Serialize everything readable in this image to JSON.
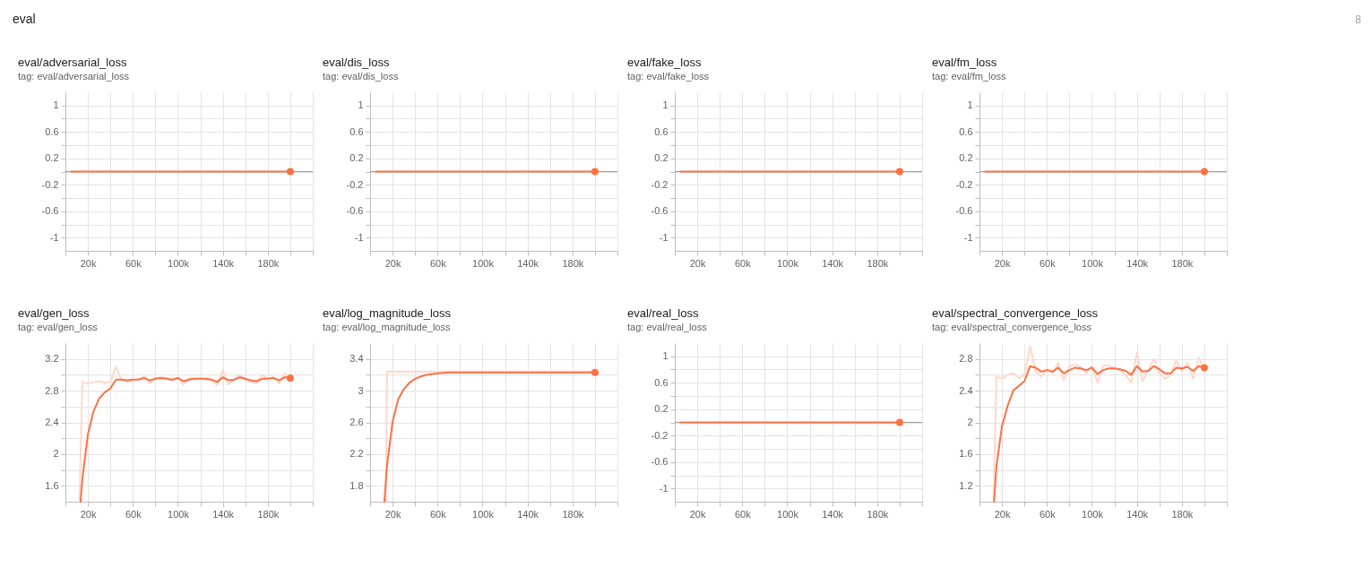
{
  "chart_data": [
    {
      "type": "other",
      "title": "eval",
      "annotations": [
        "8"
      ]
    },
    {
      "type": "line",
      "title": "eval/adversarial_loss",
      "subtitle": "tag: eval/adversarial_loss",
      "xlim": [
        0,
        220000
      ],
      "xticks": [
        {
          "value": 0,
          "label": null
        },
        {
          "value": 20000,
          "label": "20k"
        },
        {
          "value": 40000,
          "label": null
        },
        {
          "value": 60000,
          "label": "60k"
        },
        {
          "value": 80000,
          "label": null
        },
        {
          "value": 100000,
          "label": "100k"
        },
        {
          "value": 120000,
          "label": null
        },
        {
          "value": 140000,
          "label": "140k"
        },
        {
          "value": 160000,
          "label": null
        },
        {
          "value": 180000,
          "label": "180k"
        },
        {
          "value": 200000,
          "label": null
        },
        {
          "value": 220000,
          "label": null
        }
      ],
      "ylim": [
        -1.2,
        1.2
      ],
      "yticks": [
        -1,
        {
          "value": -0.8,
          "label": null
        },
        -0.6,
        {
          "value": -0.4,
          "label": null
        },
        -0.2,
        {
          "value": 0,
          "label": null
        },
        0.2,
        {
          "value": 0.4,
          "label": null
        },
        0.6,
        {
          "value": 0.8,
          "label": null
        },
        1
      ],
      "grid": true,
      "ref_lines": [
        {
          "axis": "y",
          "value": 0,
          "color": "#9e9e9e"
        }
      ],
      "series": [
        {
          "type": "line",
          "color": "#ff7043",
          "x": [
            5000,
            200000
          ],
          "values": [
            0,
            0
          ]
        },
        {
          "type": "scatter",
          "marker": "circle",
          "color": "#ff7043",
          "x": [
            200000
          ],
          "values": [
            0
          ]
        }
      ]
    },
    {
      "type": "line",
      "title": "eval/dis_loss",
      "subtitle": "tag: eval/dis_loss",
      "xlim": [
        0,
        220000
      ],
      "xticks": [
        {
          "value": 0,
          "label": null
        },
        {
          "value": 20000,
          "label": "20k"
        },
        {
          "value": 40000,
          "label": null
        },
        {
          "value": 60000,
          "label": "60k"
        },
        {
          "value": 80000,
          "label": null
        },
        {
          "value": 100000,
          "label": "100k"
        },
        {
          "value": 120000,
          "label": null
        },
        {
          "value": 140000,
          "label": "140k"
        },
        {
          "value": 160000,
          "label": null
        },
        {
          "value": 180000,
          "label": "180k"
        },
        {
          "value": 200000,
          "label": null
        },
        {
          "value": 220000,
          "label": null
        }
      ],
      "ylim": [
        -1.2,
        1.2
      ],
      "yticks": [
        -1,
        {
          "value": -0.8,
          "label": null
        },
        -0.6,
        {
          "value": -0.4,
          "label": null
        },
        -0.2,
        {
          "value": 0,
          "label": null
        },
        0.2,
        {
          "value": 0.4,
          "label": null
        },
        0.6,
        {
          "value": 0.8,
          "label": null
        },
        1
      ],
      "grid": true,
      "ref_lines": [
        {
          "axis": "y",
          "value": 0,
          "color": "#9e9e9e"
        }
      ],
      "series": [
        {
          "type": "line",
          "color": "#ff7043",
          "x": [
            5000,
            200000
          ],
          "values": [
            0,
            0
          ]
        },
        {
          "type": "scatter",
          "marker": "circle",
          "color": "#ff7043",
          "x": [
            200000
          ],
          "values": [
            0
          ]
        }
      ]
    },
    {
      "type": "line",
      "title": "eval/fake_loss",
      "subtitle": "tag: eval/fake_loss",
      "xlim": [
        0,
        220000
      ],
      "xticks": [
        {
          "value": 0,
          "label": null
        },
        {
          "value": 20000,
          "label": "20k"
        },
        {
          "value": 40000,
          "label": null
        },
        {
          "value": 60000,
          "label": "60k"
        },
        {
          "value": 80000,
          "label": null
        },
        {
          "value": 100000,
          "label": "100k"
        },
        {
          "value": 120000,
          "label": null
        },
        {
          "value": 140000,
          "label": "140k"
        },
        {
          "value": 160000,
          "label": null
        },
        {
          "value": 180000,
          "label": "180k"
        },
        {
          "value": 200000,
          "label": null
        },
        {
          "value": 220000,
          "label": null
        }
      ],
      "ylim": [
        -1.2,
        1.2
      ],
      "yticks": [
        -1,
        {
          "value": -0.8,
          "label": null
        },
        -0.6,
        {
          "value": -0.4,
          "label": null
        },
        -0.2,
        {
          "value": 0,
          "label": null
        },
        0.2,
        {
          "value": 0.4,
          "label": null
        },
        0.6,
        {
          "value": 0.8,
          "label": null
        },
        1
      ],
      "grid": true,
      "ref_lines": [
        {
          "axis": "y",
          "value": 0,
          "color": "#9e9e9e"
        }
      ],
      "series": [
        {
          "type": "line",
          "color": "#ff7043",
          "x": [
            5000,
            200000
          ],
          "values": [
            0,
            0
          ]
        },
        {
          "type": "scatter",
          "marker": "circle",
          "color": "#ff7043",
          "x": [
            200000
          ],
          "values": [
            0
          ]
        }
      ]
    },
    {
      "type": "line",
      "title": "eval/fm_loss",
      "subtitle": "tag: eval/fm_loss",
      "xlim": [
        0,
        220000
      ],
      "xticks": [
        {
          "value": 0,
          "label": null
        },
        {
          "value": 20000,
          "label": "20k"
        },
        {
          "value": 40000,
          "label": null
        },
        {
          "value": 60000,
          "label": "60k"
        },
        {
          "value": 80000,
          "label": null
        },
        {
          "value": 100000,
          "label": "100k"
        },
        {
          "value": 120000,
          "label": null
        },
        {
          "value": 140000,
          "label": "140k"
        },
        {
          "value": 160000,
          "label": null
        },
        {
          "value": 180000,
          "label": "180k"
        },
        {
          "value": 200000,
          "label": null
        },
        {
          "value": 220000,
          "label": null
        }
      ],
      "ylim": [
        -1.2,
        1.2
      ],
      "yticks": [
        -1,
        {
          "value": -0.8,
          "label": null
        },
        -0.6,
        {
          "value": -0.4,
          "label": null
        },
        -0.2,
        {
          "value": 0,
          "label": null
        },
        0.2,
        {
          "value": 0.4,
          "label": null
        },
        0.6,
        {
          "value": 0.8,
          "label": null
        },
        1
      ],
      "grid": true,
      "ref_lines": [
        {
          "axis": "y",
          "value": 0,
          "color": "#9e9e9e"
        }
      ],
      "series": [
        {
          "type": "line",
          "color": "#ff7043",
          "x": [
            5000,
            200000
          ],
          "values": [
            0,
            0
          ]
        },
        {
          "type": "scatter",
          "marker": "circle",
          "color": "#ff7043",
          "x": [
            200000
          ],
          "values": [
            0
          ]
        }
      ]
    },
    {
      "type": "line",
      "title": "eval/gen_loss",
      "subtitle": "tag: eval/gen_loss",
      "xlim": [
        0,
        220000
      ],
      "xticks": [
        {
          "value": 0,
          "label": null
        },
        {
          "value": 20000,
          "label": "20k"
        },
        {
          "value": 40000,
          "label": null
        },
        {
          "value": 60000,
          "label": "60k"
        },
        {
          "value": 80000,
          "label": null
        },
        {
          "value": 100000,
          "label": "100k"
        },
        {
          "value": 120000,
          "label": null
        },
        {
          "value": 140000,
          "label": "140k"
        },
        {
          "value": 160000,
          "label": null
        },
        {
          "value": 180000,
          "label": "180k"
        },
        {
          "value": 200000,
          "label": null
        },
        {
          "value": 220000,
          "label": null
        }
      ],
      "ylim": [
        1.4,
        3.4
      ],
      "yticks": [
        1.6,
        {
          "value": 1.8,
          "label": null
        },
        2,
        {
          "value": 2.2,
          "label": null
        },
        2.4,
        {
          "value": 2.6,
          "label": null
        },
        2.8,
        {
          "value": 3,
          "label": null
        },
        3.2
      ],
      "grid": true,
      "series": [
        {
          "type": "line",
          "color": "#ffd8cc",
          "x": [
            12500,
            15000,
            20000,
            25000,
            30000,
            35000,
            40000,
            45000,
            50000,
            55000,
            60000,
            65000,
            70000,
            75000,
            80000,
            85000,
            90000,
            95000,
            100000,
            105000,
            110000,
            115000,
            120000,
            125000,
            130000,
            135000,
            140000,
            145000,
            150000,
            155000,
            160000,
            165000,
            170000,
            175000,
            180000,
            185000,
            190000,
            195000,
            200000
          ],
          "values": [
            1.4,
            2.91,
            2.89,
            2.91,
            2.92,
            2.9,
            2.91,
            3.1,
            2.94,
            2.91,
            2.94,
            2.94,
            2.98,
            2.89,
            2.96,
            2.97,
            2.96,
            2.92,
            2.97,
            2.88,
            2.96,
            2.96,
            2.96,
            2.94,
            2.93,
            2.87,
            3.05,
            2.88,
            2.94,
            3.0,
            2.93,
            2.91,
            2.89,
            3.0,
            2.95,
            2.97,
            2.89,
            3.02,
            2.94
          ]
        },
        {
          "type": "line",
          "color": "#ff7043",
          "x": [
            13500,
            15000,
            20000,
            25000,
            30000,
            35000,
            40000,
            45000,
            50000,
            55000,
            60000,
            65000,
            70000,
            75000,
            80000,
            85000,
            90000,
            95000,
            100000,
            105000,
            110000,
            115000,
            120000,
            125000,
            130000,
            135000,
            140000,
            145000,
            150000,
            155000,
            160000,
            165000,
            170000,
            175000,
            180000,
            185000,
            190000,
            195000,
            200000
          ],
          "values": [
            1.4,
            1.68,
            2.25,
            2.54,
            2.7,
            2.78,
            2.83,
            2.94,
            2.94,
            2.93,
            2.94,
            2.94,
            2.96,
            2.93,
            2.95,
            2.96,
            2.95,
            2.94,
            2.96,
            2.92,
            2.94,
            2.95,
            2.95,
            2.95,
            2.94,
            2.91,
            2.97,
            2.93,
            2.94,
            2.97,
            2.95,
            2.93,
            2.92,
            2.95,
            2.95,
            2.96,
            2.93,
            2.97,
            2.96
          ]
        },
        {
          "type": "scatter",
          "marker": "circle",
          "color": "#ff7043",
          "x": [
            200000
          ],
          "values": [
            2.96
          ]
        }
      ]
    },
    {
      "type": "line",
      "title": "eval/log_magnitude_loss",
      "subtitle": "tag: eval/log_magnitude_loss",
      "xlim": [
        0,
        220000
      ],
      "xticks": [
        {
          "value": 0,
          "label": null
        },
        {
          "value": 20000,
          "label": "20k"
        },
        {
          "value": 40000,
          "label": null
        },
        {
          "value": 60000,
          "label": "60k"
        },
        {
          "value": 80000,
          "label": null
        },
        {
          "value": 100000,
          "label": "100k"
        },
        {
          "value": 120000,
          "label": null
        },
        {
          "value": 140000,
          "label": "140k"
        },
        {
          "value": 160000,
          "label": null
        },
        {
          "value": 180000,
          "label": "180k"
        },
        {
          "value": 200000,
          "label": null
        },
        {
          "value": 220000,
          "label": null
        }
      ],
      "ylim": [
        1.6,
        3.6
      ],
      "yticks": [
        1.8,
        {
          "value": 2,
          "label": null
        },
        2.2,
        {
          "value": 2.4,
          "label": null
        },
        2.6,
        {
          "value": 2.8,
          "label": null
        },
        3,
        {
          "value": 3.2,
          "label": null
        },
        3.4
      ],
      "grid": true,
      "series": [
        {
          "type": "line",
          "color": "#ffd8cc",
          "x": [
            14000,
            15000,
            200000
          ],
          "values": [
            1.6,
            3.24,
            3.24
          ]
        },
        {
          "type": "line",
          "color": "#ff7043",
          "x": [
            12700,
            15000,
            20000,
            25000,
            30000,
            35000,
            40000,
            45000,
            50000,
            55000,
            60000,
            70000,
            200000
          ],
          "values": [
            1.6,
            2.05,
            2.61,
            2.89,
            3.02,
            3.1,
            3.15,
            3.18,
            3.2,
            3.21,
            3.22,
            3.23,
            3.23
          ]
        },
        {
          "type": "scatter",
          "marker": "circle",
          "color": "#ff7043",
          "x": [
            200000
          ],
          "values": [
            3.23
          ]
        }
      ]
    },
    {
      "type": "line",
      "title": "eval/real_loss",
      "subtitle": "tag: eval/real_loss",
      "xlim": [
        0,
        220000
      ],
      "xticks": [
        {
          "value": 0,
          "label": null
        },
        {
          "value": 20000,
          "label": "20k"
        },
        {
          "value": 40000,
          "label": null
        },
        {
          "value": 60000,
          "label": "60k"
        },
        {
          "value": 80000,
          "label": null
        },
        {
          "value": 100000,
          "label": "100k"
        },
        {
          "value": 120000,
          "label": null
        },
        {
          "value": 140000,
          "label": "140k"
        },
        {
          "value": 160000,
          "label": null
        },
        {
          "value": 180000,
          "label": "180k"
        },
        {
          "value": 200000,
          "label": null
        },
        {
          "value": 220000,
          "label": null
        }
      ],
      "ylim": [
        -1.2,
        1.2
      ],
      "yticks": [
        -1,
        {
          "value": -0.8,
          "label": null
        },
        -0.6,
        {
          "value": -0.4,
          "label": null
        },
        -0.2,
        {
          "value": 0,
          "label": null
        },
        0.2,
        {
          "value": 0.4,
          "label": null
        },
        0.6,
        {
          "value": 0.8,
          "label": null
        },
        1
      ],
      "grid": true,
      "ref_lines": [
        {
          "axis": "y",
          "value": 0,
          "color": "#9e9e9e"
        }
      ],
      "series": [
        {
          "type": "line",
          "color": "#ff7043",
          "x": [
            5000,
            200000
          ],
          "values": [
            0,
            0
          ]
        },
        {
          "type": "scatter",
          "marker": "circle",
          "color": "#ff7043",
          "x": [
            200000
          ],
          "values": [
            0
          ]
        }
      ]
    },
    {
      "type": "line",
      "title": "eval/spectral_convergence_loss",
      "subtitle": "tag: eval/spectral_convergence_loss",
      "xlim": [
        0,
        220000
      ],
      "xticks": [
        {
          "value": 0,
          "label": null
        },
        {
          "value": 20000,
          "label": "20k"
        },
        {
          "value": 40000,
          "label": null
        },
        {
          "value": 60000,
          "label": "60k"
        },
        {
          "value": 80000,
          "label": null
        },
        {
          "value": 100000,
          "label": "100k"
        },
        {
          "value": 120000,
          "label": null
        },
        {
          "value": 140000,
          "label": "140k"
        },
        {
          "value": 160000,
          "label": null
        },
        {
          "value": 180000,
          "label": "180k"
        },
        {
          "value": 200000,
          "label": null
        },
        {
          "value": 220000,
          "label": null
        }
      ],
      "ylim": [
        1,
        3
      ],
      "yticks": [
        1.2,
        {
          "value": 1.4,
          "label": null
        },
        1.6,
        {
          "value": 1.8,
          "label": null
        },
        2,
        {
          "value": 2.2,
          "label": null
        },
        2.4,
        {
          "value": 2.6,
          "label": null
        },
        2.8
      ],
      "grid": true,
      "series": [
        {
          "type": "line",
          "color": "#ffd8cc",
          "x": [
            12500,
            15000,
            20000,
            25000,
            30000,
            35000,
            40000,
            45000,
            50000,
            55000,
            60000,
            65000,
            70000,
            75000,
            80000,
            85000,
            90000,
            95000,
            100000,
            105000,
            110000,
            115000,
            120000,
            125000,
            130000,
            135000,
            140000,
            145000,
            150000,
            155000,
            160000,
            165000,
            170000,
            175000,
            180000,
            185000,
            190000,
            195000,
            200000
          ],
          "values": [
            1.0,
            2.58,
            2.55,
            2.6,
            2.62,
            2.56,
            2.6,
            2.96,
            2.64,
            2.58,
            2.68,
            2.62,
            2.75,
            2.53,
            2.71,
            2.73,
            2.7,
            2.62,
            2.72,
            2.5,
            2.72,
            2.72,
            2.68,
            2.66,
            2.6,
            2.5,
            2.88,
            2.52,
            2.66,
            2.8,
            2.62,
            2.55,
            2.6,
            2.78,
            2.65,
            2.75,
            2.55,
            2.82,
            2.67
          ]
        },
        {
          "type": "line",
          "color": "#ff7043",
          "x": [
            13000,
            15000,
            20000,
            25000,
            30000,
            35000,
            40000,
            45000,
            50000,
            55000,
            60000,
            65000,
            70000,
            75000,
            80000,
            85000,
            90000,
            95000,
            100000,
            105000,
            110000,
            115000,
            120000,
            125000,
            130000,
            135000,
            140000,
            145000,
            150000,
            155000,
            160000,
            165000,
            170000,
            175000,
            180000,
            185000,
            190000,
            195000,
            200000
          ],
          "values": [
            1.0,
            1.44,
            1.95,
            2.21,
            2.4,
            2.46,
            2.52,
            2.71,
            2.69,
            2.64,
            2.66,
            2.64,
            2.69,
            2.62,
            2.66,
            2.69,
            2.68,
            2.66,
            2.69,
            2.61,
            2.66,
            2.68,
            2.68,
            2.67,
            2.65,
            2.6,
            2.71,
            2.64,
            2.65,
            2.71,
            2.67,
            2.62,
            2.62,
            2.69,
            2.68,
            2.7,
            2.65,
            2.71,
            2.69
          ]
        },
        {
          "type": "scatter",
          "marker": "circle",
          "color": "#ff7043",
          "x": [
            200000
          ],
          "values": [
            2.69
          ]
        }
      ]
    }
  ]
}
